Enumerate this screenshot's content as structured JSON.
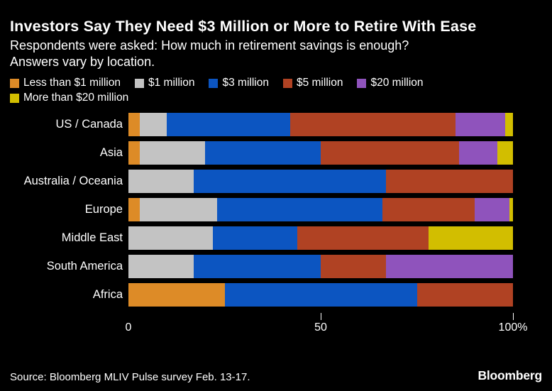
{
  "header": {
    "title": "Investors Say They Need $3 Million or More to Retire With Ease",
    "subtitle": "Respondents were asked: How much in retirement savings is enough? Answers vary by location."
  },
  "chart_data": {
    "type": "bar",
    "stacked": true,
    "orientation": "horizontal",
    "unit": "%",
    "xlim": [
      0,
      100
    ],
    "grid": false,
    "legend_position": "top",
    "categories": [
      "US / Canada",
      "Asia",
      "Australia / Oceania",
      "Europe",
      "Middle East",
      "South America",
      "Africa"
    ],
    "series": [
      {
        "name": "Less than $1 million",
        "color": "#DD8B27",
        "values": [
          3,
          3,
          0,
          3,
          0,
          0,
          25
        ]
      },
      {
        "name": "$1 million",
        "color": "#C3C3C3",
        "values": [
          7,
          17,
          17,
          20,
          22,
          17,
          0
        ]
      },
      {
        "name": "$3 million",
        "color": "#0C55C1",
        "values": [
          32,
          30,
          50,
          43,
          22,
          33,
          50
        ]
      },
      {
        "name": "$5 million",
        "color": "#B04223",
        "values": [
          43,
          36,
          33,
          24,
          34,
          17,
          25
        ]
      },
      {
        "name": "$20 million",
        "color": "#8F53BC",
        "values": [
          13,
          10,
          0,
          9,
          0,
          33,
          0
        ]
      },
      {
        "name": "More than $20 million",
        "color": "#D2BE00",
        "values": [
          2,
          4,
          0,
          1,
          22,
          0,
          0
        ]
      }
    ],
    "x_axis": {
      "ticks": [
        {
          "label": "0",
          "value": 0,
          "mark": false
        },
        {
          "label": "50",
          "value": 50,
          "mark": true
        },
        {
          "label": "100%",
          "value": 100,
          "mark": true
        }
      ]
    }
  },
  "footer": {
    "source": "Source: Bloomberg MLIV Pulse survey Feb. 13-17.",
    "brand": "Bloomberg"
  },
  "colors": {
    "background": "#000000",
    "text": "#FFFFFF"
  }
}
